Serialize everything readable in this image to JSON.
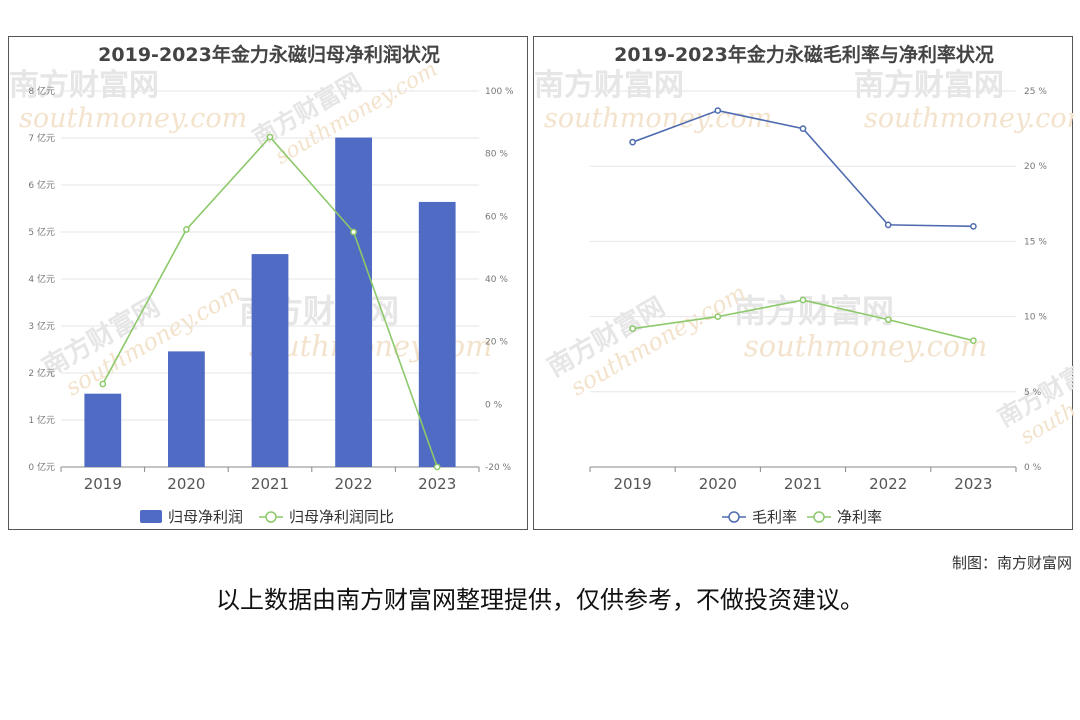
{
  "chart_data": [
    {
      "type": "bar",
      "title": "2019-2023年金力永磁归母净利润状况",
      "categories": [
        "2019",
        "2020",
        "2021",
        "2022",
        "2023"
      ],
      "series": [
        {
          "name": "归母净利润",
          "type": "bar",
          "axis": "left",
          "color": "#4f6bc4",
          "values": [
            1.56,
            2.46,
            4.53,
            7.01,
            5.64
          ]
        },
        {
          "name": "归母净利润同比",
          "type": "line",
          "axis": "right",
          "color": "#8cc96a",
          "values": [
            6.5,
            55.8,
            85.3,
            55.0,
            -20.0
          ]
        }
      ],
      "y_left": {
        "ylim": [
          0,
          8
        ],
        "ticks": [
          "0 亿元",
          "1 亿元",
          "2 亿元",
          "3 亿元",
          "4 亿元",
          "5 亿元",
          "6 亿元",
          "7 亿元",
          "8 亿元"
        ]
      },
      "y_right": {
        "ylim": [
          -20,
          100
        ],
        "ticks": [
          "-20 %",
          "0 %",
          "20 %",
          "40 %",
          "60 %",
          "80 %",
          "100 %"
        ]
      },
      "legend": "bottom",
      "grid": true
    },
    {
      "type": "line",
      "title": "2019-2023年金力永磁毛利率与净利率状况",
      "categories": [
        "2019",
        "2020",
        "2021",
        "2022",
        "2023"
      ],
      "series": [
        {
          "name": "毛利率",
          "color": "#4f6bb0",
          "values": [
            21.6,
            23.7,
            22.5,
            16.1,
            16.0
          ]
        },
        {
          "name": "净利率",
          "color": "#8cc96a",
          "values": [
            9.2,
            10.0,
            11.1,
            9.8,
            8.4
          ]
        }
      ],
      "y_right": {
        "ylim": [
          0,
          25
        ],
        "ticks": [
          "0 %",
          "5 %",
          "10 %",
          "15 %",
          "20 %",
          "25 %"
        ]
      },
      "legend": "bottom",
      "grid": true
    }
  ],
  "watermark": {
    "cn": "南方财富网",
    "en": "southmoney.com"
  },
  "footer": {
    "credit": "制图：南方财富网",
    "disclaimer": "以上数据由南方财富网整理提供，仅供参考，不做投资建议。"
  }
}
